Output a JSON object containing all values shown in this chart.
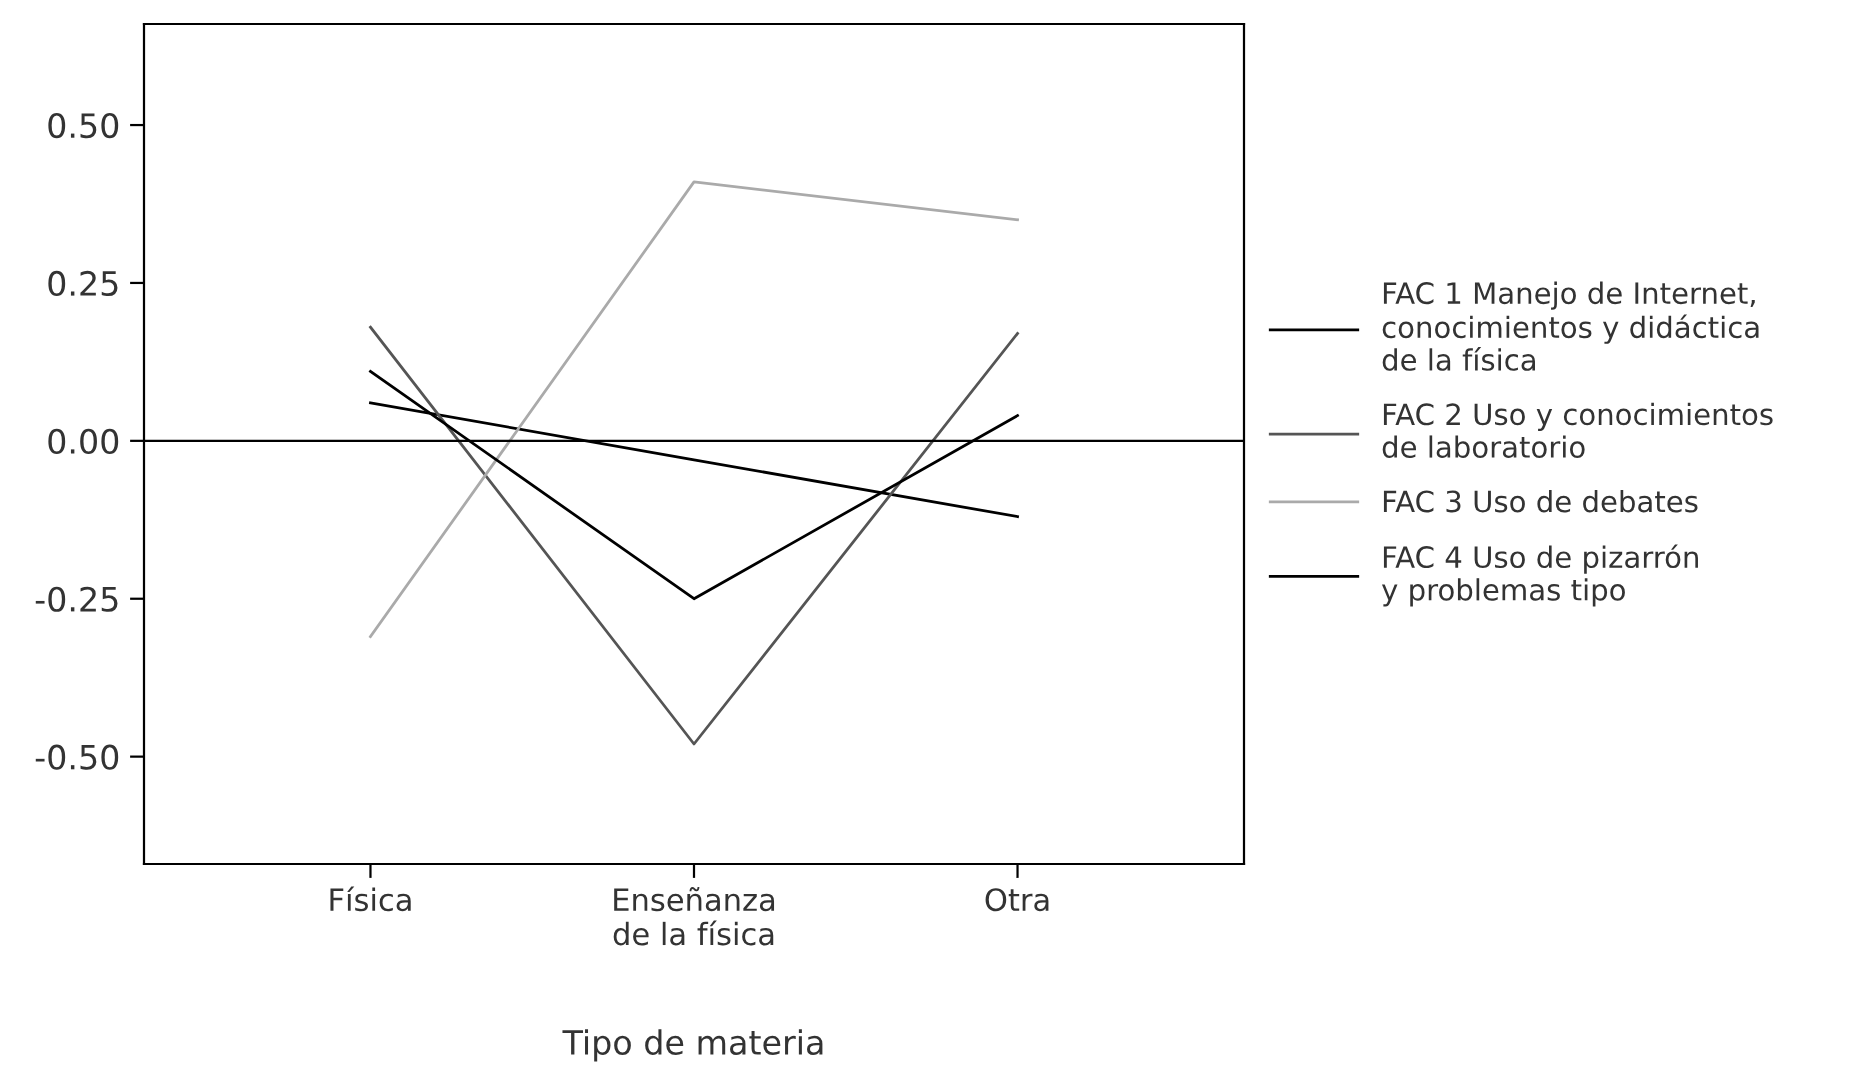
{
  "chart_data": {
    "type": "line",
    "xlabel": "Tipo de materia",
    "categories": [
      "Física",
      "Enseñanza\nde la física",
      "Otra"
    ],
    "series": [
      {
        "name": "FAC 1 Manejo de Internet,\nconocimientos y didáctica\nde la física",
        "color": "#000000",
        "values": [
          0.06,
          -0.03,
          -0.12
        ]
      },
      {
        "name": "FAC 2 Uso y conocimientos\nde laboratorio",
        "color": "#555555",
        "values": [
          0.18,
          -0.48,
          0.17
        ]
      },
      {
        "name": "FAC 3 Uso de debates",
        "color": "#aaaaaa",
        "values": [
          -0.31,
          0.41,
          0.35
        ]
      },
      {
        "name": "FAC 4 Uso de pizarrón\ny problemas tipo",
        "color": "#000000",
        "values": [
          0.11,
          -0.25,
          0.04
        ]
      }
    ],
    "ylim": [
      -0.67,
      0.66
    ],
    "yticks": [
      {
        "value": -0.5,
        "label": "-0.50"
      },
      {
        "value": -0.25,
        "label": "-0.25"
      },
      {
        "value": 0,
        "label": "0.00"
      },
      {
        "value": 0.25,
        "label": "0.25"
      },
      {
        "value": 0.5,
        "label": "0.50"
      }
    ],
    "ref_lines": [
      {
        "axis": "y",
        "value": 0,
        "color": "#000000"
      }
    ],
    "grid": false,
    "legend": "right",
    "marker": "none",
    "line_style": "solid"
  }
}
